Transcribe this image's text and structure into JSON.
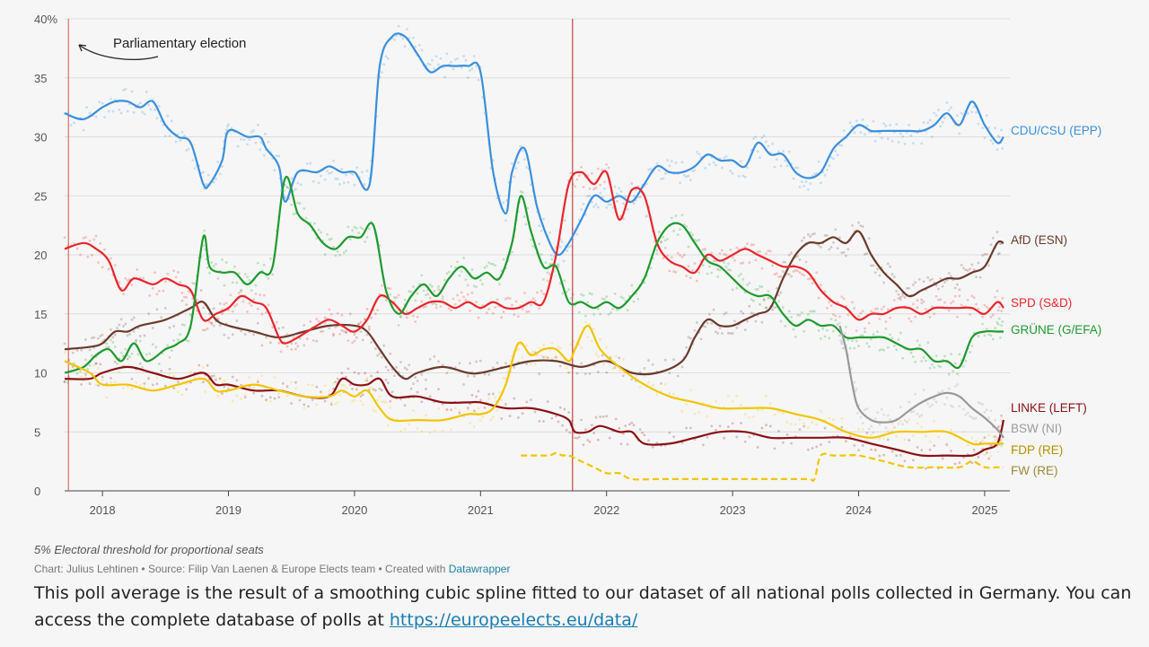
{
  "chart_data": {
    "type": "line",
    "title": "",
    "xlabel": "",
    "ylabel": "",
    "xlim": [
      2017.7,
      2025.2
    ],
    "ylim": [
      0,
      40
    ],
    "x_ticks": [
      "2018",
      "2019",
      "2020",
      "2021",
      "2022",
      "2023",
      "2024",
      "2025"
    ],
    "x_tick_values": [
      2018,
      2019,
      2020,
      2021,
      2022,
      2023,
      2024,
      2025
    ],
    "y_ticks": [
      "40%",
      "35",
      "30",
      "25",
      "20",
      "15",
      "10",
      "5",
      "0"
    ],
    "y_tick_values": [
      40,
      35,
      30,
      25,
      20,
      15,
      10,
      5,
      0
    ],
    "grid": true,
    "scatter_note": "individual polls shown as faint dots around each line",
    "reference_lines": [
      {
        "x": 2017.73,
        "color": "#d9534f",
        "label": "Parliamentary election"
      },
      {
        "x": 2021.73,
        "color": "#b22222",
        "label": ""
      }
    ],
    "annotation": {
      "text": "Parliamentary election"
    },
    "series": [
      {
        "name": "CDU/CSU (EPP)",
        "color": "#3b8fdc",
        "dashed": false,
        "x": [
          2017.7,
          2017.85,
          2018.0,
          2018.1,
          2018.2,
          2018.3,
          2018.4,
          2018.5,
          2018.6,
          2018.7,
          2018.8,
          2018.85,
          2018.95,
          2019.0,
          2019.15,
          2019.25,
          2019.3,
          2019.4,
          2019.45,
          2019.55,
          2019.7,
          2019.8,
          2019.9,
          2020.0,
          2020.12,
          2020.2,
          2020.3,
          2020.4,
          2020.5,
          2020.6,
          2020.7,
          2020.8,
          2020.9,
          2021.0,
          2021.1,
          2021.2,
          2021.25,
          2021.35,
          2021.45,
          2021.55,
          2021.62,
          2021.7,
          2021.8,
          2021.9,
          2022.0,
          2022.1,
          2022.2,
          2022.3,
          2022.4,
          2022.5,
          2022.6,
          2022.7,
          2022.8,
          2022.9,
          2023.0,
          2023.1,
          2023.2,
          2023.3,
          2023.4,
          2023.5,
          2023.6,
          2023.7,
          2023.8,
          2023.9,
          2024.0,
          2024.1,
          2024.2,
          2024.3,
          2024.4,
          2024.5,
          2024.6,
          2024.7,
          2024.8,
          2024.9,
          2025.0,
          2025.1,
          2025.15
        ],
        "values": [
          32,
          31.5,
          32.5,
          33,
          33,
          32.5,
          33,
          31,
          30,
          29.5,
          26,
          26,
          28,
          30.5,
          30,
          30,
          29,
          27.5,
          24.5,
          27,
          27,
          27.5,
          27,
          27,
          26,
          36,
          38.5,
          38.5,
          37,
          35.5,
          36,
          36,
          36,
          35.5,
          27,
          23.5,
          27,
          29,
          24,
          21,
          20,
          21,
          23,
          25,
          24.5,
          25,
          24.5,
          26,
          27.5,
          27,
          27,
          27.5,
          28.5,
          28,
          28,
          27.5,
          29.5,
          28.5,
          28.5,
          27,
          26.5,
          27,
          29,
          30,
          31,
          30.5,
          30.5,
          30.5,
          30.5,
          30.5,
          31,
          32,
          31,
          33,
          31,
          29.5,
          30
        ]
      },
      {
        "name": "AfD (ESN)",
        "color": "#6b3a2e",
        "dashed": false,
        "x": [
          2017.7,
          2017.9,
          2018.0,
          2018.1,
          2018.2,
          2018.3,
          2018.5,
          2018.7,
          2018.8,
          2018.9,
          2019.0,
          2019.2,
          2019.4,
          2019.6,
          2019.8,
          2020.0,
          2020.1,
          2020.2,
          2020.3,
          2020.4,
          2020.5,
          2020.7,
          2020.9,
          2021.0,
          2021.2,
          2021.4,
          2021.6,
          2021.8,
          2022.0,
          2022.2,
          2022.4,
          2022.6,
          2022.7,
          2022.8,
          2022.9,
          2023.0,
          2023.1,
          2023.2,
          2023.3,
          2023.4,
          2023.5,
          2023.6,
          2023.7,
          2023.8,
          2023.9,
          2024.0,
          2024.1,
          2024.2,
          2024.3,
          2024.4,
          2024.5,
          2024.6,
          2024.7,
          2024.8,
          2024.9,
          2025.0,
          2025.1,
          2025.15
        ],
        "values": [
          12,
          12.2,
          12.5,
          13.5,
          13.5,
          14,
          14.5,
          15.5,
          16,
          14.5,
          14,
          13.5,
          13,
          13.5,
          14,
          14,
          13.5,
          12,
          10.5,
          9.5,
          10,
          10.5,
          10,
          10,
          10.5,
          11,
          11,
          10.5,
          11,
          10,
          10,
          11,
          13,
          14.5,
          14,
          14,
          14.5,
          15,
          15.5,
          18,
          20,
          21,
          21,
          21.5,
          21,
          22,
          20,
          18.5,
          17.5,
          16.5,
          17,
          17.5,
          18,
          18,
          18.5,
          19,
          21,
          21
        ]
      },
      {
        "name": "SPD (S&D)",
        "color": "#e8262b",
        "dashed": false,
        "x": [
          2017.7,
          2017.85,
          2017.95,
          2018.05,
          2018.15,
          2018.25,
          2018.4,
          2018.5,
          2018.6,
          2018.7,
          2018.8,
          2018.9,
          2019.0,
          2019.1,
          2019.2,
          2019.3,
          2019.4,
          2019.45,
          2019.55,
          2019.7,
          2019.8,
          2019.9,
          2020.0,
          2020.1,
          2020.2,
          2020.3,
          2020.4,
          2020.5,
          2020.6,
          2020.7,
          2020.8,
          2020.9,
          2021.0,
          2021.1,
          2021.2,
          2021.3,
          2021.4,
          2021.5,
          2021.6,
          2021.7,
          2021.8,
          2021.9,
          2022.0,
          2022.1,
          2022.2,
          2022.3,
          2022.4,
          2022.5,
          2022.6,
          2022.7,
          2022.8,
          2022.9,
          2023.0,
          2023.1,
          2023.2,
          2023.3,
          2023.4,
          2023.5,
          2023.6,
          2023.7,
          2023.8,
          2023.9,
          2024.0,
          2024.1,
          2024.2,
          2024.3,
          2024.4,
          2024.5,
          2024.6,
          2024.7,
          2024.8,
          2024.9,
          2025.0,
          2025.1,
          2025.15
        ],
        "values": [
          20.5,
          21,
          20.5,
          19.5,
          17,
          18,
          17.5,
          18,
          17.5,
          17,
          14.5,
          15,
          15.5,
          16.5,
          16,
          15.5,
          13,
          12.5,
          13,
          14,
          14.5,
          14,
          13.5,
          14.5,
          16.5,
          16,
          15,
          15.5,
          16,
          16,
          15.5,
          16,
          15.5,
          16,
          15.5,
          15.5,
          16,
          16,
          20,
          26,
          27,
          26,
          27,
          23,
          25.5,
          25,
          21,
          19.5,
          19,
          18.5,
          20,
          19.5,
          20,
          20.5,
          20,
          19.5,
          19,
          19,
          18.5,
          17,
          16,
          15.5,
          14.5,
          15,
          15,
          15.5,
          15.5,
          15,
          15.5,
          15.5,
          15.5,
          15.5,
          15,
          16,
          15.5
        ]
      },
      {
        "name": "GRÜNE (G/EFA)",
        "color": "#1e9a2e",
        "dashed": false,
        "x": [
          2017.7,
          2017.85,
          2017.95,
          2018.05,
          2018.15,
          2018.25,
          2018.35,
          2018.5,
          2018.6,
          2018.7,
          2018.8,
          2018.85,
          2018.95,
          2019.05,
          2019.15,
          2019.25,
          2019.35,
          2019.45,
          2019.55,
          2019.65,
          2019.75,
          2019.85,
          2019.95,
          2020.05,
          2020.15,
          2020.25,
          2020.35,
          2020.45,
          2020.55,
          2020.65,
          2020.75,
          2020.85,
          2020.95,
          2021.05,
          2021.15,
          2021.25,
          2021.32,
          2021.4,
          2021.5,
          2021.6,
          2021.7,
          2021.8,
          2021.9,
          2022.0,
          2022.1,
          2022.2,
          2022.3,
          2022.4,
          2022.5,
          2022.6,
          2022.7,
          2022.8,
          2022.9,
          2023.0,
          2023.1,
          2023.2,
          2023.3,
          2023.4,
          2023.5,
          2023.6,
          2023.7,
          2023.8,
          2023.9,
          2024.0,
          2024.1,
          2024.2,
          2024.3,
          2024.4,
          2024.5,
          2024.6,
          2024.7,
          2024.8,
          2024.9,
          2025.0,
          2025.1,
          2025.15
        ],
        "values": [
          10,
          10.5,
          11.5,
          12,
          11,
          12.5,
          11,
          12,
          12.5,
          14,
          21.5,
          19,
          18.5,
          18.5,
          17.5,
          18.5,
          19,
          26.5,
          23.5,
          22.5,
          21,
          20.5,
          21.5,
          21.5,
          22.5,
          17,
          15,
          16.5,
          17.5,
          16.5,
          18,
          19,
          18,
          18.5,
          18,
          21,
          25,
          22,
          19,
          19,
          16,
          16,
          15.5,
          16,
          15.5,
          16.5,
          18,
          21,
          22.5,
          22.5,
          21,
          19.5,
          19,
          18,
          17,
          16.5,
          16.5,
          15,
          14,
          14.5,
          14,
          14,
          13,
          13,
          13,
          13,
          12.5,
          12,
          12,
          11,
          11,
          10.5,
          13,
          13.5,
          13.5,
          13.5
        ]
      },
      {
        "name": "LINKE (LEFT)",
        "color": "#8b0f14",
        "dashed": false,
        "x": [
          2017.7,
          2017.9,
          2018.0,
          2018.2,
          2018.4,
          2018.6,
          2018.8,
          2018.9,
          2019.0,
          2019.2,
          2019.4,
          2019.6,
          2019.8,
          2019.9,
          2020.0,
          2020.1,
          2020.2,
          2020.3,
          2020.5,
          2020.7,
          2020.9,
          2021.0,
          2021.2,
          2021.4,
          2021.6,
          2021.7,
          2021.75,
          2021.85,
          2021.95,
          2022.1,
          2022.2,
          2022.3,
          2022.5,
          2022.7,
          2022.9,
          2023.1,
          2023.3,
          2023.5,
          2023.7,
          2023.9,
          2024.1,
          2024.3,
          2024.5,
          2024.7,
          2024.9,
          2025.0,
          2025.1,
          2025.15
        ],
        "values": [
          9.5,
          9.5,
          10,
          10.5,
          10,
          9.5,
          10,
          9,
          9,
          8.5,
          8.5,
          8,
          8,
          9.5,
          9,
          9,
          9.5,
          8,
          8,
          7.5,
          7.5,
          7.5,
          7,
          7,
          6.5,
          6,
          5,
          5,
          5.5,
          5,
          5,
          4,
          4,
          4.5,
          5,
          5,
          4.5,
          4.5,
          4.5,
          4.5,
          4,
          3.5,
          3,
          3,
          3,
          3.5,
          4,
          6
        ]
      },
      {
        "name": "BSW (NI)",
        "color": "#999999",
        "dashed": false,
        "x": [
          2023.85,
          2023.9,
          2023.95,
          2024.0,
          2024.1,
          2024.2,
          2024.3,
          2024.4,
          2024.5,
          2024.6,
          2024.7,
          2024.8,
          2024.9,
          2025.0,
          2025.1,
          2025.15
        ],
        "values": [
          14,
          12,
          9,
          7,
          6,
          5.8,
          6,
          6.8,
          7.5,
          8,
          8.3,
          8,
          7,
          6.2,
          5.2,
          4.5
        ]
      },
      {
        "name": "FDP (RE)",
        "color": "#f2c500",
        "dashed": false,
        "x": [
          2017.7,
          2017.9,
          2018.0,
          2018.2,
          2018.4,
          2018.6,
          2018.8,
          2018.9,
          2019.0,
          2019.2,
          2019.4,
          2019.6,
          2019.8,
          2019.9,
          2020.0,
          2020.1,
          2020.2,
          2020.3,
          2020.5,
          2020.7,
          2020.9,
          2021.0,
          2021.1,
          2021.2,
          2021.3,
          2021.4,
          2021.5,
          2021.6,
          2021.7,
          2021.75,
          2021.85,
          2021.95,
          2022.1,
          2022.3,
          2022.5,
          2022.7,
          2022.9,
          2023.1,
          2023.3,
          2023.5,
          2023.7,
          2023.9,
          2024.1,
          2024.3,
          2024.5,
          2024.7,
          2024.9,
          2025.0,
          2025.1,
          2025.15
        ],
        "values": [
          11,
          10,
          9,
          9,
          8.5,
          9,
          9.5,
          8.5,
          8.5,
          9,
          8.5,
          8,
          8,
          8.5,
          8,
          8.5,
          7,
          6,
          6,
          6,
          6.5,
          6.5,
          7,
          9,
          12.5,
          11.5,
          12,
          12,
          11,
          12,
          14,
          12,
          10.5,
          9,
          8,
          7.5,
          7,
          7,
          7,
          6.5,
          6,
          5,
          4.5,
          5,
          5,
          5,
          4,
          4,
          4,
          4
        ]
      },
      {
        "name": "FW (RE)",
        "color": "#f2c500",
        "dashed": true,
        "x": [
          2021.32,
          2021.4,
          2021.5,
          2021.55,
          2021.6,
          2021.65,
          2021.7,
          2021.8,
          2021.9,
          2022.0,
          2022.1,
          2022.2,
          2022.4,
          2022.6,
          2022.8,
          2023.0,
          2023.2,
          2023.4,
          2023.6,
          2023.65,
          2023.7,
          2023.8,
          2023.9,
          2024.0,
          2024.2,
          2024.4,
          2024.6,
          2024.8,
          2024.9,
          2025.0,
          2025.1,
          2025.15
        ],
        "values": [
          3,
          3,
          3,
          3,
          3.2,
          3,
          3,
          2.5,
          2,
          1.5,
          1.5,
          1,
          1,
          1,
          1,
          1,
          1,
          1,
          1,
          1,
          3,
          3,
          3,
          3,
          2.5,
          2,
          2,
          2,
          2.5,
          2,
          2,
          2
        ]
      }
    ]
  },
  "labels": {
    "annotation": "Parliamentary election",
    "threshold_note": "5% Electoral threshold for proportional seats",
    "credit_prefix": "Chart: Julius Lehtinen • Source: Filip Van Laenen & Europe Elects team • Created with ",
    "credit_link": "Datawrapper",
    "caption_text": "This poll average is the result of a smoothing cubic spline fitted to our dataset of all national polls collected in Germany. You can access the complete database of polls at ",
    "caption_link": "https://europeelects.eu/data/"
  },
  "colors": {
    "background": "#f6f6f6",
    "fdp_label": "#b88f00",
    "fw_label": "#9c8a3a",
    "link": "#1a7cb0"
  }
}
